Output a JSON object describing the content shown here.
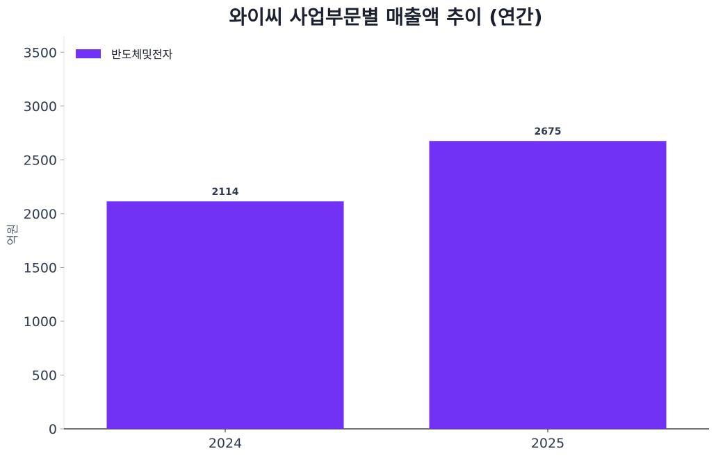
{
  "chart_data": {
    "type": "bar",
    "title": "와이씨 사업부문별 매출액 추이 (연간)",
    "xlabel": "",
    "ylabel": "억원",
    "categories": [
      "2024",
      "2025"
    ],
    "series": [
      {
        "name": "반도체및전자",
        "values": [
          2114,
          2675
        ],
        "color": "#7132f5"
      }
    ],
    "ylim": [
      0,
      3650
    ],
    "yticks": [
      0,
      500,
      1000,
      1500,
      2000,
      2500,
      3000,
      3500
    ],
    "grid": false,
    "legend_position": "top-left",
    "data_labels": true
  }
}
